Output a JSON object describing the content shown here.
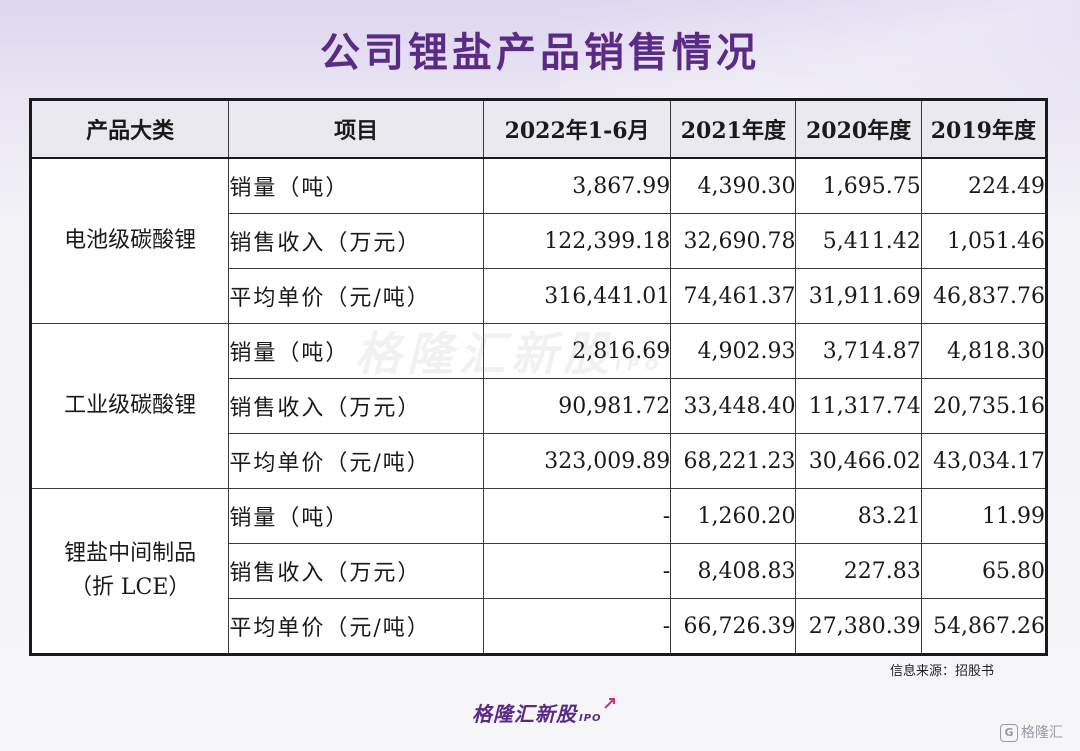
{
  "title": "公司锂盐产品销售情况",
  "table": {
    "headers": [
      "产品大类",
      "项目",
      "2022年1-6月",
      "2021年度",
      "2020年度",
      "2019年度"
    ],
    "groups": [
      {
        "category": "电池级碳酸锂",
        "rows": [
          {
            "item": "销量（吨）",
            "values": [
              "3,867.99",
              "4,390.30",
              "1,695.75",
              "224.49"
            ]
          },
          {
            "item": "销售收入（万元）",
            "values": [
              "122,399.18",
              "32,690.78",
              "5,411.42",
              "1,051.46"
            ]
          },
          {
            "item": "平均单价（元/吨）",
            "values": [
              "316,441.01",
              "74,461.37",
              "31,911.69",
              "46,837.76"
            ]
          }
        ]
      },
      {
        "category": "工业级碳酸锂",
        "rows": [
          {
            "item": "销量（吨）",
            "values": [
              "2,816.69",
              "4,902.93",
              "3,714.87",
              "4,818.30"
            ]
          },
          {
            "item": "销售收入（万元）",
            "values": [
              "90,981.72",
              "33,448.40",
              "11,317.74",
              "20,735.16"
            ]
          },
          {
            "item": "平均单价（元/吨）",
            "values": [
              "323,009.89",
              "68,221.23",
              "30,466.02",
              "43,034.17"
            ]
          }
        ]
      },
      {
        "category_line1": "锂盐中间制品",
        "category_line2": "（折 LCE）",
        "rows": [
          {
            "item": "销量（吨）",
            "values": [
              "-",
              "1,260.20",
              "83.21",
              "11.99"
            ]
          },
          {
            "item": "销售收入（万元）",
            "values": [
              "-",
              "8,408.83",
              "227.83",
              "65.80"
            ]
          },
          {
            "item": "平均单价（元/吨）",
            "values": [
              "-",
              "66,726.39",
              "27,380.39",
              "54,867.26"
            ]
          }
        ]
      }
    ]
  },
  "watermark": {
    "text": "格隆汇新股",
    "suffix": "IPO"
  },
  "source": "信息来源：招股书",
  "brand": {
    "text": "格隆汇新股",
    "suffix": "IPO"
  },
  "corner_logo": {
    "icon": "G",
    "text": "格隆汇"
  },
  "colors": {
    "title": "#5b2a86",
    "header_bg": "#e9e9ef",
    "border": "#1a1a1a"
  }
}
